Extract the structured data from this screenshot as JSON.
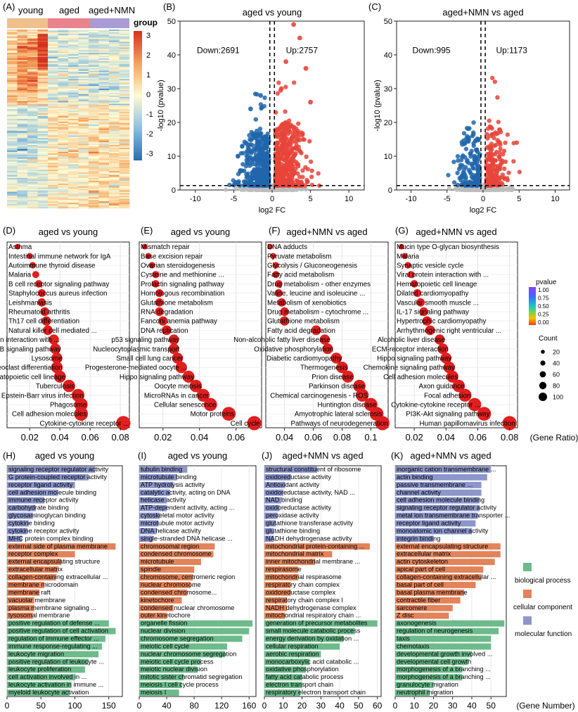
{
  "colors": {
    "young": "#EFC08C",
    "aged": "#E9838C",
    "aged_nmn": "#A89BD6",
    "down": "#2166AC",
    "up": "#E8443A",
    "ns": "#BDBDBD",
    "bp": "#6DBB8B",
    "cc": "#E2835A",
    "mf": "#8C96CA",
    "dot": "#E01F1F"
  },
  "panel_labels": {
    "A": "(A)",
    "B": "(B)",
    "C": "(C)",
    "D": "(D)",
    "E": "(E)",
    "F": "(F)",
    "G": "(G)",
    "H": "(H)",
    "I": "(I)",
    "J": "(J)",
    "K": "(K)"
  },
  "heatmap": {
    "groups": [
      "young",
      "aged",
      "aged+NMN"
    ],
    "legend_title": "group",
    "scale_ticks": [
      "3",
      "2",
      "1",
      "0",
      "-1",
      "-2",
      "-3"
    ]
  },
  "volcano": [
    {
      "title": "aged vs young",
      "down_label": "Down:2691",
      "up_label": "Up:2757",
      "xlabel": "log2 FC",
      "ylabel": "-log10 (pvalue)",
      "xticks": [
        "-10",
        "-5",
        "0",
        "5",
        "10"
      ],
      "yticks": [
        "0",
        "10",
        "20",
        "30",
        "40",
        "50"
      ],
      "xlim": [
        -12,
        12
      ],
      "ylim": [
        0,
        50
      ],
      "threshold_fc": 0.3,
      "threshold_p": 1.3
    },
    {
      "title": "aged+NMN  vs aged",
      "down_label": "Down:995",
      "up_label": "Up:1173",
      "xlabel": "log2 FC",
      "ylabel": "-log10 (pvalue)",
      "xticks": [
        "-10",
        "-5",
        "0",
        "5",
        "10"
      ],
      "yticks": [
        "0",
        "10",
        "20",
        "30",
        "40",
        "50"
      ],
      "xlim": [
        -12,
        12
      ],
      "ylim": [
        0,
        50
      ],
      "threshold_fc": 0.3,
      "threshold_p": 1.3
    }
  ],
  "chart_data": [
    {
      "type": "scatter",
      "title": "aged vs young",
      "xlabel": "",
      "xticks": [
        0.02,
        0.04,
        0.06,
        0.08
      ],
      "xlim": [
        0.005,
        0.086
      ],
      "terms": [
        "Asthma",
        "Intestinal immune network for IgA",
        "Autoimmune thyroid disease",
        "Malaria",
        "B cell receptor signaling pathway",
        "Staphylococcus aureus infection",
        "Leishmaniasis",
        "Rheumatoid arthritis",
        "Th17 cell differentiation",
        "Natural killer cell mediated ...",
        "Viral protein interaction with ...",
        "NF-kappa B signaling pathway",
        "Lysosome",
        "Osteoclast differentiation",
        "Hematopoietic cell lineage",
        "Tuberculosis",
        "Epstein-Barr virus infection",
        "Phagosome",
        "Cell adhesion molecules",
        "Cytokine-cytokine receptor ..."
      ],
      "ratio": [
        0.012,
        0.02,
        0.022,
        0.024,
        0.026,
        0.028,
        0.028,
        0.03,
        0.031,
        0.032,
        0.036,
        0.037,
        0.038,
        0.038,
        0.04,
        0.046,
        0.052,
        0.054,
        0.054,
        0.082
      ]
    },
    {
      "type": "scatter",
      "title": "aged vs young",
      "xlabel": "",
      "xticks": [
        0.02,
        0.04,
        0.06
      ],
      "xlim": [
        0.007,
        0.074
      ],
      "terms": [
        "Mismatch repair",
        "Base excision repair",
        "Ovarian steroidogenesis",
        "Cysteine and methionine ...",
        "Prolactin signaling pathway",
        "Homologous recombination",
        "Glutathione metabolism",
        "RNA degradation",
        "Fanconi anemia pathway",
        "DNA replication",
        "p53 signaling pathway",
        "Nucleocytoplasmic transport",
        "Small cell lung cancer",
        "Progesterone-mediated oocyte ...",
        "Hippo signaling pathway",
        "Oocyte meiosis",
        "MicroRNAs in cancer",
        "Cellular senescence",
        "Motor proteins",
        "Cell cycle"
      ],
      "ratio": [
        0.01,
        0.012,
        0.014,
        0.016,
        0.016,
        0.018,
        0.018,
        0.018,
        0.02,
        0.022,
        0.026,
        0.026,
        0.028,
        0.03,
        0.034,
        0.038,
        0.042,
        0.046,
        0.056,
        0.07
      ]
    },
    {
      "type": "scatter",
      "title": "aged+NMN  vs aged",
      "xlabel": "",
      "xticks": [
        0.04,
        0.06,
        0.08,
        0.1
      ],
      "xlim": [
        0.027,
        0.112
      ],
      "terms": [
        "DNA adducts",
        "Pyruvate metabolism",
        "Glycolysis / Gluconeogenesis",
        "Fatty acid metabolism",
        "Drug metabolism - other enzymes",
        "Valine, leucine and isoleucine ...",
        "Metabolism of xenobiotics",
        "Drug metabolism - cytochrome ...",
        "Glutathione metabolism",
        "Fatty acid degradation",
        "Non-alcoholic fatty liver disease",
        "Oxidative phosphorylation",
        "Diabetic cardiomyopathy",
        "Thermogenesis",
        "Prion disease",
        "Parkinson disease",
        "Chemical carcinogenesis - ROS",
        "Huntington disease",
        "Amyotrophic lateral sclerosis",
        "Pathways of neurodegeneration"
      ],
      "ratio": [
        0.03,
        0.032,
        0.034,
        0.034,
        0.036,
        0.036,
        0.038,
        0.04,
        0.04,
        0.062,
        0.068,
        0.07,
        0.076,
        0.08,
        0.084,
        0.092,
        0.094,
        0.1,
        0.104,
        0.108
      ]
    },
    {
      "type": "scatter",
      "title": "aged+NMN  vs aged",
      "xlabel": "(Gene Ratio)",
      "xticks": [
        0.02,
        0.04,
        0.06,
        0.08
      ],
      "xlim": [
        0.008,
        0.085
      ],
      "terms": [
        "Mucin type O-glycan biosynthesis",
        "Malaria",
        "Synaptic vesicle cycle",
        "Viral protein interaction with ...",
        "Hematopoietic cell lineage",
        "Dilated cardiomyopathy",
        "Vascular smooth muscle ...",
        "IL-17 signaling pathway",
        "Hypertrophic cardiomyopathy",
        "Arrhythmogenic right ventricular ...",
        "Alcoholic liver disease",
        "ECM-receptor interaction",
        "Hippo signaling pathway",
        "Chemokine signaling pathway",
        "Cell adhesion molecules",
        "Axon guidance",
        "Focal adhesion",
        "Cytokine-cytokine receptor ...",
        "PI3K-Akt signaling pathway",
        "Human papillomavirus infection"
      ],
      "ratio": [
        0.012,
        0.014,
        0.016,
        0.018,
        0.02,
        0.022,
        0.024,
        0.026,
        0.028,
        0.03,
        0.036,
        0.038,
        0.04,
        0.042,
        0.044,
        0.048,
        0.052,
        0.058,
        0.064,
        0.08
      ]
    },
    {
      "type": "bar",
      "title": "aged vs young",
      "xlabel": "",
      "xticks": [
        0,
        50,
        100,
        150
      ],
      "xlim": [
        0,
        170
      ],
      "labels": [
        "signaling receptor regulator activity",
        "G protein-coupled receptor activity",
        "receptor ligand activity",
        "cell adhesion molecule binding",
        "immune receptor activity",
        "carbohydrate binding",
        "glycosaminoglycan binding",
        "cytokine binding",
        "cytokine receptor activity",
        "MHC protein complex binding",
        "external side of plasma membrane",
        "receptor complex",
        "external encapsulating structure",
        "extracellular matrix",
        "collagen-containing extracellular ...",
        "membrane microdomain",
        "membrane raft",
        "vacuolar membrane",
        "plasma membrane signaling ...",
        "lysosomal membrane",
        "positive regulation of defense ...",
        "positive regulation of cell activation",
        "regulation of immune effector ...",
        "immune response-regulating ...",
        "leukocyte migration",
        "positive regulation of leukocyte ...",
        "leukocyte proliferation",
        "cell activation involved in ...",
        "leukocyte activation in immune ...",
        "myeloid leukocyte activation"
      ],
      "category": [
        "mf",
        "mf",
        "mf",
        "mf",
        "mf",
        "mf",
        "mf",
        "mf",
        "mf",
        "mf",
        "cc",
        "cc",
        "cc",
        "cc",
        "cc",
        "cc",
        "cc",
        "cc",
        "cc",
        "cc",
        "bp",
        "bp",
        "bp",
        "bp",
        "bp",
        "bp",
        "bp",
        "bp",
        "bp",
        "bp"
      ],
      "values": [
        130,
        120,
        100,
        75,
        55,
        42,
        38,
        32,
        30,
        22,
        160,
        100,
        80,
        75,
        72,
        55,
        48,
        40,
        40,
        38,
        150,
        160,
        145,
        140,
        135,
        120,
        115,
        100,
        95,
        92
      ]
    },
    {
      "type": "bar",
      "title": "aged vs young",
      "xlabel": "",
      "xticks": [
        0,
        40,
        80,
        120,
        160
      ],
      "xlim": [
        0,
        170
      ],
      "labels": [
        "tubulin binding",
        "microtubule binding",
        "ATP hydrolysis activity",
        "catalytic activity, acting on DNA",
        "helicase activity",
        "ATP-dependent activity, acting ...",
        "cytoskeletal motor activity",
        "microtubule motor activity",
        "DNA helicase activity",
        "single-stranded DNA helicase ...",
        "chromosomal region",
        "condensed chromosome",
        "microtubule",
        "spindle",
        "chromosome, centromeric region",
        "nuclear chromosome",
        "condensed chromosome...",
        "kinetochore",
        "condensed nuclear chromosome",
        "outer kinetochore",
        "organelle fission",
        "nuclear division",
        "chromosome segregation",
        "meiotic cell cycle",
        "nuclear chromosome segregation",
        "meiotic cell cycle process",
        "meiotic nuclear division",
        "mitotic sister chromatid segregation",
        "meiosis I cell cycle process",
        "meiosis I"
      ],
      "category": [
        "mf",
        "mf",
        "mf",
        "mf",
        "mf",
        "mf",
        "mf",
        "mf",
        "mf",
        "mf",
        "cc",
        "cc",
        "cc",
        "cc",
        "cc",
        "cc",
        "cc",
        "cc",
        "cc",
        "cc",
        "bp",
        "bp",
        "bp",
        "bp",
        "bp",
        "bp",
        "bp",
        "bp",
        "bp",
        "bp"
      ],
      "values": [
        70,
        55,
        50,
        45,
        40,
        40,
        30,
        28,
        25,
        20,
        110,
        108,
        90,
        80,
        78,
        75,
        70,
        62,
        50,
        40,
        165,
        160,
        150,
        128,
        125,
        90,
        85,
        65,
        62,
        58
      ]
    },
    {
      "type": "bar",
      "title": "aged+NMN  vs aged",
      "xlabel": "",
      "xticks": [
        0,
        10,
        20,
        30,
        40,
        50,
        60
      ],
      "xlim": [
        0,
        62
      ],
      "labels": [
        "structural constituent of ribosome",
        "oxidoreductase activity",
        "Antioxidant activity",
        "oxidoreductase activity, NAD ...",
        "NAD binding",
        "oxidoreductase activity",
        "peroxidase activity",
        "glutathione transferase activity",
        "glutathione binding",
        "NADH dehydrogenase activity",
        "mitochondrial protein-containing ...",
        "mitochondrial matrix",
        "inner mitochondrial membrane ...",
        "respirasome",
        "mitochondrial respirasome",
        "respiratory chain complex",
        "oxidoreductase complex",
        "respiratory chain complex I",
        "NADH dehydrogenase complex",
        "mitochondrial respiratory chain ...",
        "generation of precursor metabolites",
        "small molecule catabolic process",
        "energy derivation by oxidation ...",
        "cellular respiration",
        "aerobic respiration",
        "monocarboxylic acid catabolic ...",
        "oxidative phosphorylation",
        "fatty acid catabolic process",
        "electron transport chain",
        "respiratory electron transport chain"
      ],
      "category": [
        "mf",
        "mf",
        "mf",
        "mf",
        "mf",
        "mf",
        "mf",
        "mf",
        "mf",
        "mf",
        "cc",
        "cc",
        "cc",
        "cc",
        "cc",
        "cc",
        "cc",
        "cc",
        "cc",
        "cc",
        "bp",
        "bp",
        "bp",
        "bp",
        "bp",
        "bp",
        "bp",
        "bp",
        "bp",
        "bp"
      ],
      "values": [
        28,
        14,
        11,
        10,
        9,
        8,
        7,
        6,
        5,
        5,
        56,
        36,
        27,
        18,
        18,
        14,
        14,
        12,
        12,
        11,
        60,
        48,
        42,
        40,
        30,
        24,
        22,
        20,
        20,
        19
      ]
    },
    {
      "type": "bar",
      "title": "aged+NMN  vs aged",
      "xlabel": "(Gene Number)",
      "xticks": [
        0,
        10,
        20,
        30,
        40,
        50
      ],
      "xlim": [
        0,
        58
      ],
      "labels": [
        "inorganic cation transmembrane ...",
        "actin binding",
        "passive transmembrane ...",
        "channel activity",
        "cell adhesion molecule binding",
        "signaling receptor regulator activity",
        "metal ion transmembrane transporter ...",
        "receptor ligand activity",
        "monoatomic ion channel activity",
        "integrin binding",
        "external encapsulating structure",
        "extracellular matrix",
        "actin cytoskeleton",
        "apical part of cell",
        "collagen-containing extracellular ...",
        "basal part of cell",
        "basal plasma membrane",
        "contractile fiber",
        "sarcomere",
        "Z disc",
        "axonogenesis",
        "regulation of neurogenesis",
        "taxis",
        "chemotaxis",
        "developmental growth involved ...",
        "developmental cell growth",
        "morphogenesis of a branching ...",
        "morphogenesis of a branching ...",
        "granulocyte migration",
        "neutrophil migration"
      ],
      "category": [
        "mf",
        "mf",
        "mf",
        "mf",
        "mf",
        "mf",
        "mf",
        "mf",
        "mf",
        "mf",
        "cc",
        "cc",
        "cc",
        "cc",
        "cc",
        "cc",
        "cc",
        "cc",
        "cc",
        "cc",
        "bp",
        "bp",
        "bp",
        "bp",
        "bp",
        "bp",
        "bp",
        "bp",
        "bp",
        "bp"
      ],
      "values": [
        50,
        48,
        45,
        45,
        44,
        44,
        43,
        42,
        40,
        20,
        55,
        55,
        52,
        46,
        45,
        42,
        36,
        34,
        30,
        28,
        57,
        54,
        50,
        50,
        40,
        38,
        35,
        35,
        20,
        18
      ]
    }
  ],
  "dot_legend": {
    "pvalue_title": "pvalue",
    "pvalue_ticks": [
      "1.00",
      "0.75",
      "0.50",
      "0.25",
      "0.00"
    ],
    "count_title": "Count",
    "count_sizes": [
      20,
      40,
      60,
      80,
      100
    ],
    "count_ticks": [
      "20",
      "40",
      "60",
      "80",
      "100"
    ]
  },
  "bar_legend": {
    "bp_label": "biological process",
    "cc_label": "cellular component",
    "mf_label": "molecular function"
  }
}
